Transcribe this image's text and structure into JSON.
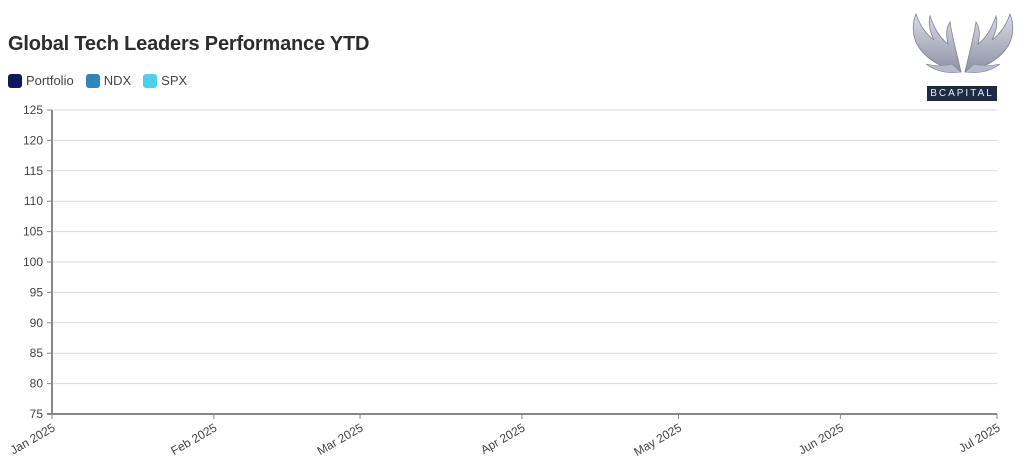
{
  "title": "Global Tech Leaders Performance YTD",
  "logo": {
    "text": "BCAPITAL",
    "icon": "wings-icon"
  },
  "legend": [
    {
      "name": "Portfolio",
      "color": "#0e1a5b"
    },
    {
      "name": "NDX",
      "color": "#2f86bf"
    },
    {
      "name": "SPX",
      "color": "#4dd0ec"
    }
  ],
  "chart_data": {
    "type": "line",
    "title": "Global Tech Leaders Performance YTD",
    "xlabel": "",
    "ylabel": "",
    "ylim": [
      75,
      125
    ],
    "yticks": [
      75,
      80,
      85,
      90,
      95,
      100,
      105,
      110,
      115,
      120,
      125
    ],
    "xticks": [
      "Jan 2025",
      "Feb 2025",
      "Mar 2025",
      "Apr 2025",
      "May 2025",
      "Jun 2025",
      "Jul 2025"
    ],
    "xlim": [
      "2025-01-01",
      "2025-07-01"
    ],
    "grid": true,
    "legend_position": "top-left",
    "series": [
      {
        "name": "Portfolio",
        "values": []
      },
      {
        "name": "NDX",
        "values": []
      },
      {
        "name": "SPX",
        "values": []
      }
    ]
  }
}
